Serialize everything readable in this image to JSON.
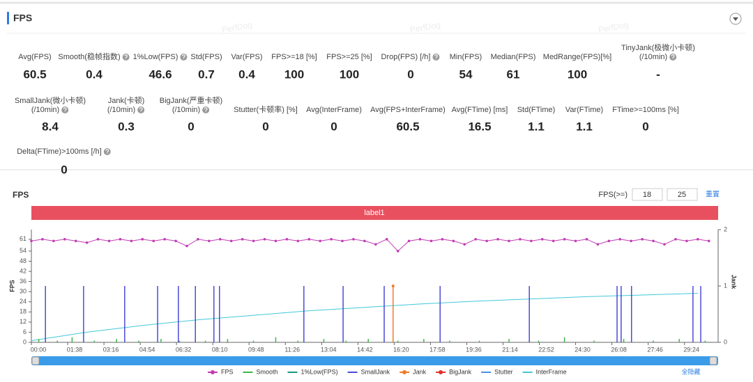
{
  "header": {
    "title": "FPS",
    "watermark": "PerfDog"
  },
  "metrics": [
    [
      {
        "label": [
          "Avg(FPS)"
        ],
        "value": 60.5,
        "help": false
      },
      {
        "label": [
          "Smooth(稳帧指数)"
        ],
        "value": 0.4,
        "help": true
      },
      {
        "label": [
          "1%Low(FPS)"
        ],
        "value": 46.6,
        "help": true
      },
      {
        "label": [
          "Std(FPS)"
        ],
        "value": 0.7,
        "help": false
      },
      {
        "label": [
          "Var(FPS)"
        ],
        "value": 0.4,
        "help": false
      },
      {
        "label": [
          "FPS>=18 [%]"
        ],
        "value": 100,
        "help": false
      },
      {
        "label": [
          "FPS>=25 [%]"
        ],
        "value": 100,
        "help": false
      },
      {
        "label": [
          "Drop(FPS) [/h]"
        ],
        "value": 0,
        "help": true
      },
      {
        "label": [
          "Min(FPS)"
        ],
        "value": 54,
        "help": false
      },
      {
        "label": [
          "Median(FPS)"
        ],
        "value": 61,
        "help": false
      },
      {
        "label": [
          "MedRange(FPS)[%]"
        ],
        "value": 100,
        "help": false
      },
      {
        "label": [
          "TinyJank(极微小卡顿)",
          "(/10min)"
        ],
        "value": "-",
        "help": true
      }
    ],
    [
      {
        "label": [
          "SmallJank(微小卡顿)",
          "(/10min)"
        ],
        "value": 8.4,
        "help": true
      },
      {
        "label": [
          "Jank(卡顿)",
          "(/10min)"
        ],
        "value": 0.3,
        "help": true
      },
      {
        "label": [
          "BigJank(严重卡顿)",
          "(/10min)"
        ],
        "value": 0,
        "help": true
      },
      {
        "label": [
          "Stutter(卡顿率) [%]"
        ],
        "value": 0,
        "help": false
      },
      {
        "label": [
          "Avg(InterFrame)"
        ],
        "value": 0,
        "help": false
      },
      {
        "label": [
          "Avg(FPS+InterFrame)"
        ],
        "value": 60.5,
        "help": false
      },
      {
        "label": [
          "Avg(FTime) [ms]"
        ],
        "value": 16.5,
        "help": false
      },
      {
        "label": [
          "Std(FTime)"
        ],
        "value": 1.1,
        "help": false
      },
      {
        "label": [
          "Var(FTime)"
        ],
        "value": 1.1,
        "help": false
      },
      {
        "label": [
          "FTime>=100ms [%]"
        ],
        "value": 0,
        "help": false
      }
    ],
    [
      {
        "label": [
          "Delta(FTime)>100ms [/h]"
        ],
        "value": 0,
        "help": true
      }
    ]
  ],
  "chart_section": {
    "title": "FPS",
    "threshold_label": "FPS(>=)",
    "thresholds": [
      18,
      25
    ],
    "reset": "重置",
    "band_label": "label1",
    "hide_all": "全隐藏"
  },
  "chart_data": {
    "type": "line",
    "y_label": "FPS",
    "y2_label": "Jank",
    "xlim": [
      0,
      1855
    ],
    "xticks": [
      {
        "value": 0,
        "label": "00:00"
      },
      {
        "value": 98,
        "label": "01:38"
      },
      {
        "value": 196,
        "label": "03:16"
      },
      {
        "value": 294,
        "label": "04:54"
      },
      {
        "value": 392,
        "label": "06:32"
      },
      {
        "value": 490,
        "label": "08:10"
      },
      {
        "value": 588,
        "label": "09:48"
      },
      {
        "value": 686,
        "label": "11:26"
      },
      {
        "value": 784,
        "label": "13:04"
      },
      {
        "value": 882,
        "label": "14:42"
      },
      {
        "value": 980,
        "label": "16:20"
      },
      {
        "value": 1078,
        "label": "17:58"
      },
      {
        "value": 1176,
        "label": "19:36"
      },
      {
        "value": 1274,
        "label": "21:14"
      },
      {
        "value": 1372,
        "label": "22:52"
      },
      {
        "value": 1470,
        "label": "24:30"
      },
      {
        "value": 1568,
        "label": "26:08"
      },
      {
        "value": 1666,
        "label": "27:46"
      },
      {
        "value": 1764,
        "label": "29:24"
      }
    ],
    "ylim": [
      0,
      66.7
    ],
    "yticks": [
      0,
      6,
      12,
      18,
      24,
      30,
      36,
      42,
      48,
      54,
      61
    ],
    "y2lim": [
      0,
      2
    ],
    "y2ticks": [
      0,
      1,
      2
    ],
    "series": [
      {
        "name": "FPS",
        "color": "#c23bb5",
        "style": "line-markers",
        "axis": "y",
        "x": [
          0,
          30,
          60,
          90,
          120,
          150,
          180,
          210,
          240,
          270,
          300,
          330,
          360,
          390,
          420,
          450,
          480,
          510,
          540,
          570,
          600,
          630,
          660,
          690,
          720,
          750,
          780,
          810,
          840,
          870,
          900,
          930,
          960,
          990,
          1020,
          1050,
          1080,
          1110,
          1140,
          1170,
          1200,
          1230,
          1260,
          1290,
          1320,
          1350,
          1380,
          1410,
          1440,
          1470,
          1500,
          1530,
          1560,
          1590,
          1620,
          1650,
          1680,
          1710,
          1740,
          1770,
          1800,
          1830
        ],
        "values": [
          60,
          61,
          60,
          61,
          60,
          59,
          61,
          60,
          61,
          60,
          61,
          60,
          61,
          60,
          57,
          61,
          60,
          61,
          60,
          61,
          60,
          61,
          60,
          61,
          60,
          61,
          60,
          61,
          60,
          61,
          60,
          58,
          61,
          54,
          60,
          61,
          60,
          61,
          60,
          58,
          61,
          60,
          61,
          60,
          61,
          60,
          61,
          60,
          61,
          60,
          61,
          58,
          60,
          61,
          60,
          61,
          60,
          58,
          61,
          60,
          61,
          60
        ]
      },
      {
        "name": "Smooth",
        "color": "#3cb44b",
        "style": "spikes",
        "axis": "y",
        "x": [
          20,
          70,
          110,
          170,
          230,
          290,
          350,
          400,
          470,
          530,
          600,
          660,
          720,
          790,
          850,
          910,
          990,
          1060,
          1130,
          1210,
          1290,
          1370,
          1440,
          1520,
          1600,
          1680,
          1750,
          1820
        ],
        "values": [
          2,
          1,
          3,
          1,
          2,
          1,
          2,
          1,
          1,
          2,
          1,
          3,
          1,
          2,
          1,
          2,
          1,
          2,
          1,
          1,
          2,
          1,
          3,
          1,
          2,
          1,
          2,
          1
        ]
      },
      {
        "name": "1%Low(FPS)",
        "color": "#1a9a7a",
        "style": "line",
        "axis": "y",
        "x": [],
        "values": []
      },
      {
        "name": "SmallJank",
        "color": "#4a4ad8",
        "style": "spikes",
        "axis": "y2",
        "x": [
          38,
          141,
          252,
          341,
          397,
          443,
          493,
          508,
          736,
          842,
          953,
          1104,
          1345,
          1582,
          1593,
          1621,
          1787,
          1808
        ],
        "values": [
          1,
          1,
          1,
          1,
          1,
          1,
          1,
          1,
          1,
          1,
          1,
          1,
          1,
          1,
          1,
          1,
          1,
          1
        ]
      },
      {
        "name": "Jank",
        "color": "#f07a2a",
        "style": "spikes-dot",
        "axis": "y2",
        "x": [
          977
        ],
        "values": [
          1
        ]
      },
      {
        "name": "BigJank",
        "color": "#e03030",
        "style": "spikes-dot",
        "axis": "y2",
        "x": [],
        "values": []
      },
      {
        "name": "Stutter",
        "color": "#4a90e2",
        "style": "line",
        "axis": "y2",
        "x": [],
        "values": []
      },
      {
        "name": "InterFrame",
        "color": "#40c8d8",
        "style": "line",
        "axis": "y2",
        "x": [
          0,
          150,
          300,
          450,
          600,
          750,
          900,
          1050,
          1200,
          1350,
          1500,
          1650,
          1800
        ],
        "values": [
          0.03,
          0.18,
          0.3,
          0.4,
          0.48,
          0.56,
          0.62,
          0.68,
          0.73,
          0.77,
          0.81,
          0.84,
          0.87
        ]
      }
    ]
  }
}
